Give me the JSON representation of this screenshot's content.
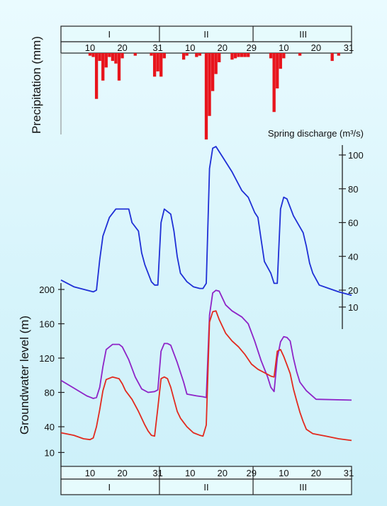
{
  "chart_data": {
    "type": "line",
    "title": "",
    "x_axis": {
      "months": [
        "I",
        "II",
        "III"
      ],
      "ticks_top": [
        "10",
        "20",
        "31",
        "10",
        "20",
        "29",
        "10",
        "20",
        "31"
      ],
      "ticks_bottom": [
        "10",
        "20",
        "31",
        "10",
        "20",
        "29",
        "10",
        "20",
        "31"
      ],
      "day_range": [
        1,
        91
      ]
    },
    "precipitation": {
      "label": "Precipitation (mm)",
      "bars": [
        {
          "day": 10,
          "value": 2
        },
        {
          "day": 11,
          "value": 3
        },
        {
          "day": 12,
          "value": 35
        },
        {
          "day": 13,
          "value": 6
        },
        {
          "day": 14,
          "value": 21
        },
        {
          "day": 15,
          "value": 11
        },
        {
          "day": 16,
          "value": 3
        },
        {
          "day": 17,
          "value": 6
        },
        {
          "day": 18,
          "value": 8
        },
        {
          "day": 19,
          "value": 21
        },
        {
          "day": 20,
          "value": 4
        },
        {
          "day": 24,
          "value": 2
        },
        {
          "day": 29,
          "value": 2
        },
        {
          "day": 30,
          "value": 18
        },
        {
          "day": 31,
          "value": 14
        },
        {
          "day": 32,
          "value": 18
        },
        {
          "day": 33,
          "value": 4
        },
        {
          "day": 39,
          "value": 5
        },
        {
          "day": 40,
          "value": 2
        },
        {
          "day": 43,
          "value": 3
        },
        {
          "day": 44,
          "value": 2
        },
        {
          "day": 46,
          "value": 66
        },
        {
          "day": 47,
          "value": 48
        },
        {
          "day": 48,
          "value": 29
        },
        {
          "day": 49,
          "value": 16
        },
        {
          "day": 50,
          "value": 7
        },
        {
          "day": 54,
          "value": 5
        },
        {
          "day": 55,
          "value": 4
        },
        {
          "day": 56,
          "value": 3
        },
        {
          "day": 57,
          "value": 3
        },
        {
          "day": 58,
          "value": 3
        },
        {
          "day": 59,
          "value": 3
        },
        {
          "day": 66,
          "value": 4
        },
        {
          "day": 67,
          "value": 45
        },
        {
          "day": 68,
          "value": 27
        },
        {
          "day": 69,
          "value": 12
        },
        {
          "day": 70,
          "value": 4
        },
        {
          "day": 75,
          "value": 2
        },
        {
          "day": 85,
          "value": 6
        },
        {
          "day": 87,
          "value": 2
        }
      ]
    },
    "spring_discharge": {
      "label": "Spring discharge (m³/s)",
      "axis_ticks": [
        "100",
        "80",
        "60",
        "40",
        "20",
        "10"
      ],
      "color": "#1f2fd6",
      "points": [
        [
          1,
          26
        ],
        [
          5,
          22
        ],
        [
          9,
          20
        ],
        [
          11,
          19
        ],
        [
          12,
          20
        ],
        [
          13,
          38
        ],
        [
          14,
          52
        ],
        [
          16,
          63
        ],
        [
          18,
          68
        ],
        [
          21,
          68
        ],
        [
          22,
          68
        ],
        [
          23,
          60
        ],
        [
          25,
          55
        ],
        [
          26,
          42
        ],
        [
          27,
          35
        ],
        [
          29,
          25
        ],
        [
          30,
          23
        ],
        [
          31,
          23
        ],
        [
          32,
          60
        ],
        [
          33,
          68
        ],
        [
          35,
          65
        ],
        [
          36,
          55
        ],
        [
          37,
          40
        ],
        [
          38,
          30
        ],
        [
          40,
          25
        ],
        [
          42,
          22
        ],
        [
          44,
          21
        ],
        [
          45,
          21
        ],
        [
          46,
          24
        ],
        [
          47,
          92
        ],
        [
          48,
          104
        ],
        [
          49,
          105
        ],
        [
          51,
          99
        ],
        [
          54,
          90
        ],
        [
          57,
          79
        ],
        [
          59,
          75
        ],
        [
          61,
          66
        ],
        [
          62,
          63
        ],
        [
          63,
          50
        ],
        [
          64,
          37
        ],
        [
          66,
          30
        ],
        [
          67,
          24
        ],
        [
          68,
          24
        ],
        [
          69,
          68
        ],
        [
          70,
          75
        ],
        [
          71,
          74
        ],
        [
          73,
          64
        ],
        [
          76,
          54
        ],
        [
          77,
          46
        ],
        [
          78,
          36
        ],
        [
          79,
          30
        ],
        [
          81,
          23
        ],
        [
          84,
          21
        ],
        [
          87,
          19
        ],
        [
          91,
          17
        ]
      ]
    },
    "groundwater": {
      "label": "Groundwater level (m)",
      "axis_ticks": [
        "200",
        "160",
        "120",
        "80",
        "40",
        "10"
      ],
      "series": [
        {
          "color": "#8e24c7",
          "points": [
            [
              1,
              94
            ],
            [
              5,
              85
            ],
            [
              9,
              76
            ],
            [
              11,
              73
            ],
            [
              12,
              74
            ],
            [
              13,
              86
            ],
            [
              14,
              110
            ],
            [
              15,
              130
            ],
            [
              17,
              136
            ],
            [
              19,
              136
            ],
            [
              20,
              133
            ],
            [
              22,
              118
            ],
            [
              24,
              98
            ],
            [
              26,
              84
            ],
            [
              28,
              80
            ],
            [
              30,
              81
            ],
            [
              31,
              83
            ],
            [
              32,
              128
            ],
            [
              33,
              137
            ],
            [
              34,
              137
            ],
            [
              35,
              135
            ],
            [
              37,
              115
            ],
            [
              39,
              92
            ],
            [
              40,
              78
            ],
            [
              43,
              76
            ],
            [
              45,
              75
            ],
            [
              46,
              74
            ],
            [
              47,
              170
            ],
            [
              48,
              196
            ],
            [
              49,
              199
            ],
            [
              50,
              198
            ],
            [
              52,
              182
            ],
            [
              54,
              175
            ],
            [
              57,
              168
            ],
            [
              59,
              160
            ],
            [
              61,
              140
            ],
            [
              63,
              117
            ],
            [
              65,
              98
            ],
            [
              66,
              86
            ],
            [
              67,
              81
            ],
            [
              68,
              120
            ],
            [
              69,
              139
            ],
            [
              70,
              145
            ],
            [
              71,
              144
            ],
            [
              72,
              140
            ],
            [
              73,
              120
            ],
            [
              74,
              104
            ],
            [
              75,
              92
            ],
            [
              77,
              82
            ],
            [
              80,
              72
            ],
            [
              91,
              71
            ]
          ]
        },
        {
          "color": "#e22a1f",
          "points": [
            [
              1,
              33
            ],
            [
              5,
              30
            ],
            [
              8,
              26
            ],
            [
              10,
              25
            ],
            [
              11,
              27
            ],
            [
              12,
              40
            ],
            [
              13,
              60
            ],
            [
              14,
              82
            ],
            [
              15,
              95
            ],
            [
              17,
              98
            ],
            [
              19,
              96
            ],
            [
              20,
              90
            ],
            [
              21,
              82
            ],
            [
              23,
              72
            ],
            [
              25,
              58
            ],
            [
              27,
              42
            ],
            [
              28,
              35
            ],
            [
              29,
              30
            ],
            [
              30,
              29
            ],
            [
              31,
              62
            ],
            [
              32,
              96
            ],
            [
              33,
              98
            ],
            [
              34,
              96
            ],
            [
              35,
              86
            ],
            [
              36,
              72
            ],
            [
              37,
              58
            ],
            [
              38,
              50
            ],
            [
              39,
              45
            ],
            [
              40,
              40
            ],
            [
              42,
              33
            ],
            [
              44,
              30
            ],
            [
              45,
              29
            ],
            [
              46,
              42
            ],
            [
              47,
              162
            ],
            [
              48,
              174
            ],
            [
              49,
              175
            ],
            [
              50,
              165
            ],
            [
              52,
              149
            ],
            [
              54,
              140
            ],
            [
              56,
              133
            ],
            [
              58,
              124
            ],
            [
              60,
              113
            ],
            [
              62,
              107
            ],
            [
              64,
              103
            ],
            [
              66,
              99
            ],
            [
              67,
              98
            ],
            [
              68,
              128
            ],
            [
              69,
              130
            ],
            [
              70,
              122
            ],
            [
              71,
              112
            ],
            [
              72,
              102
            ],
            [
              73,
              84
            ],
            [
              74,
              70
            ],
            [
              75,
              57
            ],
            [
              76,
              46
            ],
            [
              77,
              37
            ],
            [
              79,
              32
            ],
            [
              83,
              29
            ],
            [
              87,
              26
            ],
            [
              91,
              24
            ]
          ]
        }
      ]
    }
  }
}
